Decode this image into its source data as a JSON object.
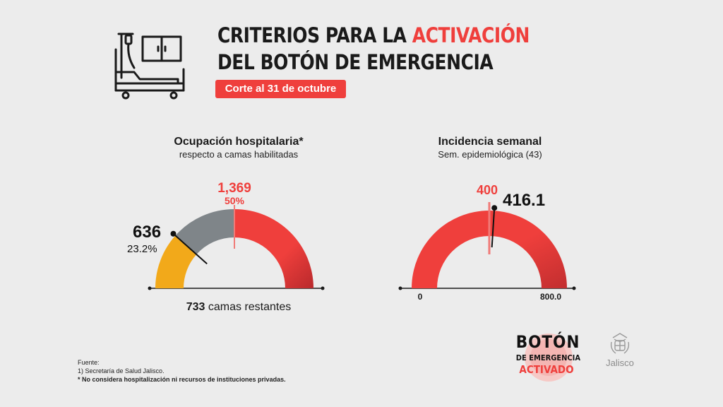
{
  "header": {
    "title_line_1": "CRITERIOS PARA LA ",
    "title_highlight": "ACTIVACIÓN",
    "title_line_2": "DEL BOTÓN DE EMERGENCIA",
    "cutoff": "Corte al 31 de octubre",
    "icon": "hospital-bed-icon"
  },
  "colors": {
    "accent_red": "#ef3f3c",
    "dark_red": "#b9292c",
    "used_yellow": "#f2a91a",
    "gray": "#7f8589",
    "background": "#ececec"
  },
  "chart_data": [
    {
      "type": "gauge",
      "title": "Ocupación hospitalaria*",
      "subtitle": "respecto a camas habilitadas",
      "total_label": "1,369",
      "total_pct_label": "50%",
      "used_label": "636",
      "used_pct_label": "23.2%",
      "remaining_value": "733",
      "remaining_text": "camas restantes",
      "threshold_fraction": 0.5,
      "used_fraction": 0.232
    },
    {
      "type": "gauge",
      "title": "Incidencia semanal",
      "subtitle": "Sem. epidemiológica (43)",
      "min_label": "0",
      "max_label": "800.0",
      "min": 0,
      "max": 800,
      "threshold": 400,
      "threshold_label": "400",
      "current": 416.1,
      "current_label": "416.1"
    }
  ],
  "footer": {
    "source_heading": "Fuente:",
    "source_1": "1) Secretaría de Salud Jalisco.",
    "note": "* No considera hospitalización ni recursos de instituciones privadas."
  },
  "logo": {
    "line_1": "BOTÓN",
    "line_2": "DE EMERGENCIA",
    "line_3": "ACTIVADO",
    "icon": "emergency-button-icon"
  },
  "government_logo": {
    "name": "Jalisco",
    "icon": "jalisco-coat-of-arms-icon"
  }
}
